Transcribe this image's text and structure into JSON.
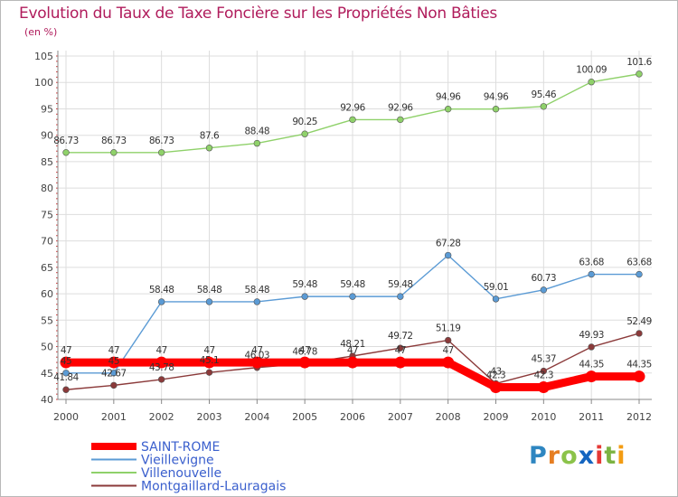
{
  "title": "Evolution du Taux de Taxe Foncière sur les Propriétés Non Bâties",
  "subtitle": "(en %)",
  "logo": {
    "letters": [
      "P",
      "r",
      "o",
      "x",
      "i",
      "t",
      "i"
    ],
    "colors": [
      "#2e86c1",
      "#e67e22",
      "#8bc34a",
      "#1565c0",
      "#e53935",
      "#7cb342",
      "#f39c12"
    ]
  },
  "chart_data": {
    "type": "line",
    "title": "Evolution du Taux de Taxe Foncière sur les Propriétés Non Bâties",
    "ylabel": "(en %)",
    "xlabel": "",
    "ylim": [
      40,
      105
    ],
    "yticks": [
      40,
      45,
      50,
      55,
      60,
      65,
      70,
      75,
      80,
      85,
      90,
      95,
      100,
      105
    ],
    "grid": true,
    "legend_position": "bottom-left",
    "x": [
      "2000",
      "2001",
      "2002",
      "2003",
      "2004",
      "2005",
      "2006",
      "2007",
      "2008",
      "2009",
      "2010",
      "2011",
      "2012"
    ],
    "series": [
      {
        "name": "SAINT-ROME",
        "color": "#ff0000",
        "values": [
          47,
          47,
          47,
          47,
          47,
          47,
          47,
          47,
          47,
          42.3,
          42.3,
          44.35,
          44.35
        ],
        "labels": [
          "47",
          "47",
          "47",
          "47",
          "47",
          "47",
          "47",
          "47",
          "47",
          "42.3",
          "42.3",
          "44.35",
          "44.35"
        ]
      },
      {
        "name": "Vieillevigne",
        "color": "#5b9bd5",
        "values": [
          45,
          45,
          58.48,
          58.48,
          58.48,
          59.48,
          59.48,
          59.48,
          67.28,
          59.01,
          60.73,
          63.68,
          63.68
        ],
        "labels": [
          "45",
          "45",
          "58.48",
          "58.48",
          "58.48",
          "59.48",
          "59.48",
          "59.48",
          "67.28",
          "59.01",
          "60.73",
          "63.68",
          "63.68"
        ]
      },
      {
        "name": "Villenouvelle",
        "color": "#8fd16a",
        "values": [
          86.73,
          86.73,
          86.73,
          87.6,
          88.48,
          90.25,
          92.96,
          92.96,
          94.96,
          94.96,
          95.46,
          100.09,
          101.6
        ],
        "labels": [
          "86.73",
          "86.73",
          "86.73",
          "87.6",
          "88.48",
          "90.25",
          "92.96",
          "92.96",
          "94.96",
          "94.96",
          "95.46",
          "100.09",
          "101.6"
        ]
      },
      {
        "name": "Montgaillard-Lauragais",
        "color": "#8b3a3a",
        "values": [
          41.84,
          42.67,
          43.78,
          45.1,
          46.03,
          46.78,
          48.21,
          49.72,
          51.19,
          43,
          45.37,
          49.93,
          52.49
        ],
        "labels": [
          "41.84",
          "42.67",
          "43.78",
          "45.1",
          "46.03",
          "46.78",
          "48.21",
          "49.72",
          "51.19",
          "43",
          "45.37",
          "49.93",
          "52.49"
        ]
      }
    ]
  }
}
